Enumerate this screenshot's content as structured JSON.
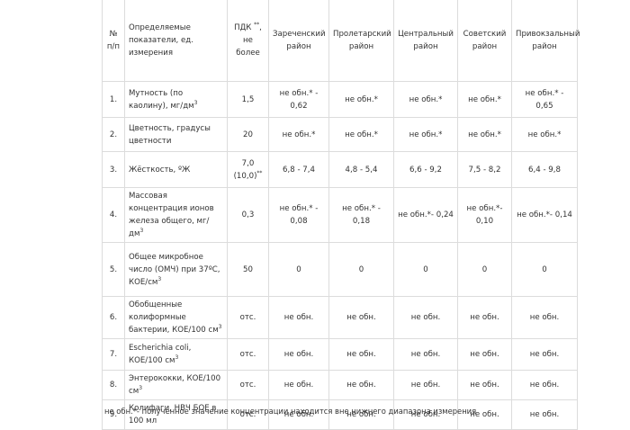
{
  "table": {
    "header": [
      "№ п/п",
      "Определяемые показатели, ед. измерения",
      [
        {
          "text": "ПДК "
        },
        {
          "sup": "**"
        },
        {
          "text": ", не более"
        }
      ],
      "Зареченский район",
      "Пролетарский район",
      "Центральный район",
      "Советский район",
      "Привокзальный район"
    ],
    "rows": [
      [
        "1.",
        [
          {
            "text": "Мутность (по каолину), мг/дм"
          },
          {
            "sup": "3"
          }
        ],
        "1,5",
        "не обн.* - 0,62",
        "не обн.*",
        "не обн.*",
        "не обн.*",
        "не обн.* - 0,65"
      ],
      [
        "2.",
        "Цветность, градусы цветности",
        "20",
        "не обн.*",
        "не обн.*",
        "не обн.*",
        "не обн.*",
        "не обн.*"
      ],
      [
        "3.",
        "Жёсткость, ºЖ",
        [
          {
            "text": "7,0 (10,0)"
          },
          {
            "sup": "**"
          }
        ],
        "6,8 - 7,4",
        "4,8 - 5,4",
        "6,6 - 9,2",
        "7,5 - 8,2",
        "6,4 - 9,8"
      ],
      [
        "4.",
        [
          {
            "text": "Массовая концентрация ионов железа общего, мг/дм"
          },
          {
            "sup": "3"
          }
        ],
        "0,3",
        "не обн.* - 0,08",
        "не обн.* - 0,18",
        "не обн.*- 0,24",
        "не обн.*- 0,10",
        "не обн.*- 0,14"
      ],
      [
        "5.",
        [
          {
            "text": "Общее микробное число (ОМЧ) при 37ºС, КОЕ/см"
          },
          {
            "sup": "3"
          }
        ],
        "50",
        "0",
        "0",
        "0",
        "0",
        "0"
      ],
      [
        "6.",
        [
          {
            "text": "Обобщенные колиформные бактерии, КОЕ/100 см"
          },
          {
            "sup": "3"
          }
        ],
        "отс.",
        "не обн.",
        "не обн.",
        "не обн.",
        "не обн.",
        "не обн."
      ],
      [
        "7.",
        [
          {
            "text": "Escherichia coli, КОЕ/100 см"
          },
          {
            "sup": "3"
          }
        ],
        "отс.",
        "не обн.",
        "не обн.",
        "не обн.",
        "не обн.",
        "не обн."
      ],
      [
        "8.",
        [
          {
            "text": "Энтерококки, КОЕ/100 см"
          },
          {
            "sup": "3"
          }
        ],
        "отс.",
        "не обн.",
        "не обн.",
        "не обн.",
        "не обн.",
        "не обн."
      ],
      [
        "9.",
        "Колифаги, НВЧ БОЕ в 100 мл",
        "отс.",
        "не обн.",
        "не обн.",
        "не обн.",
        "не обн.",
        "не обн."
      ]
    ],
    "footnote": "не обн.*- полученное значение концентрации находится вне нижнего диапазона измерения"
  }
}
